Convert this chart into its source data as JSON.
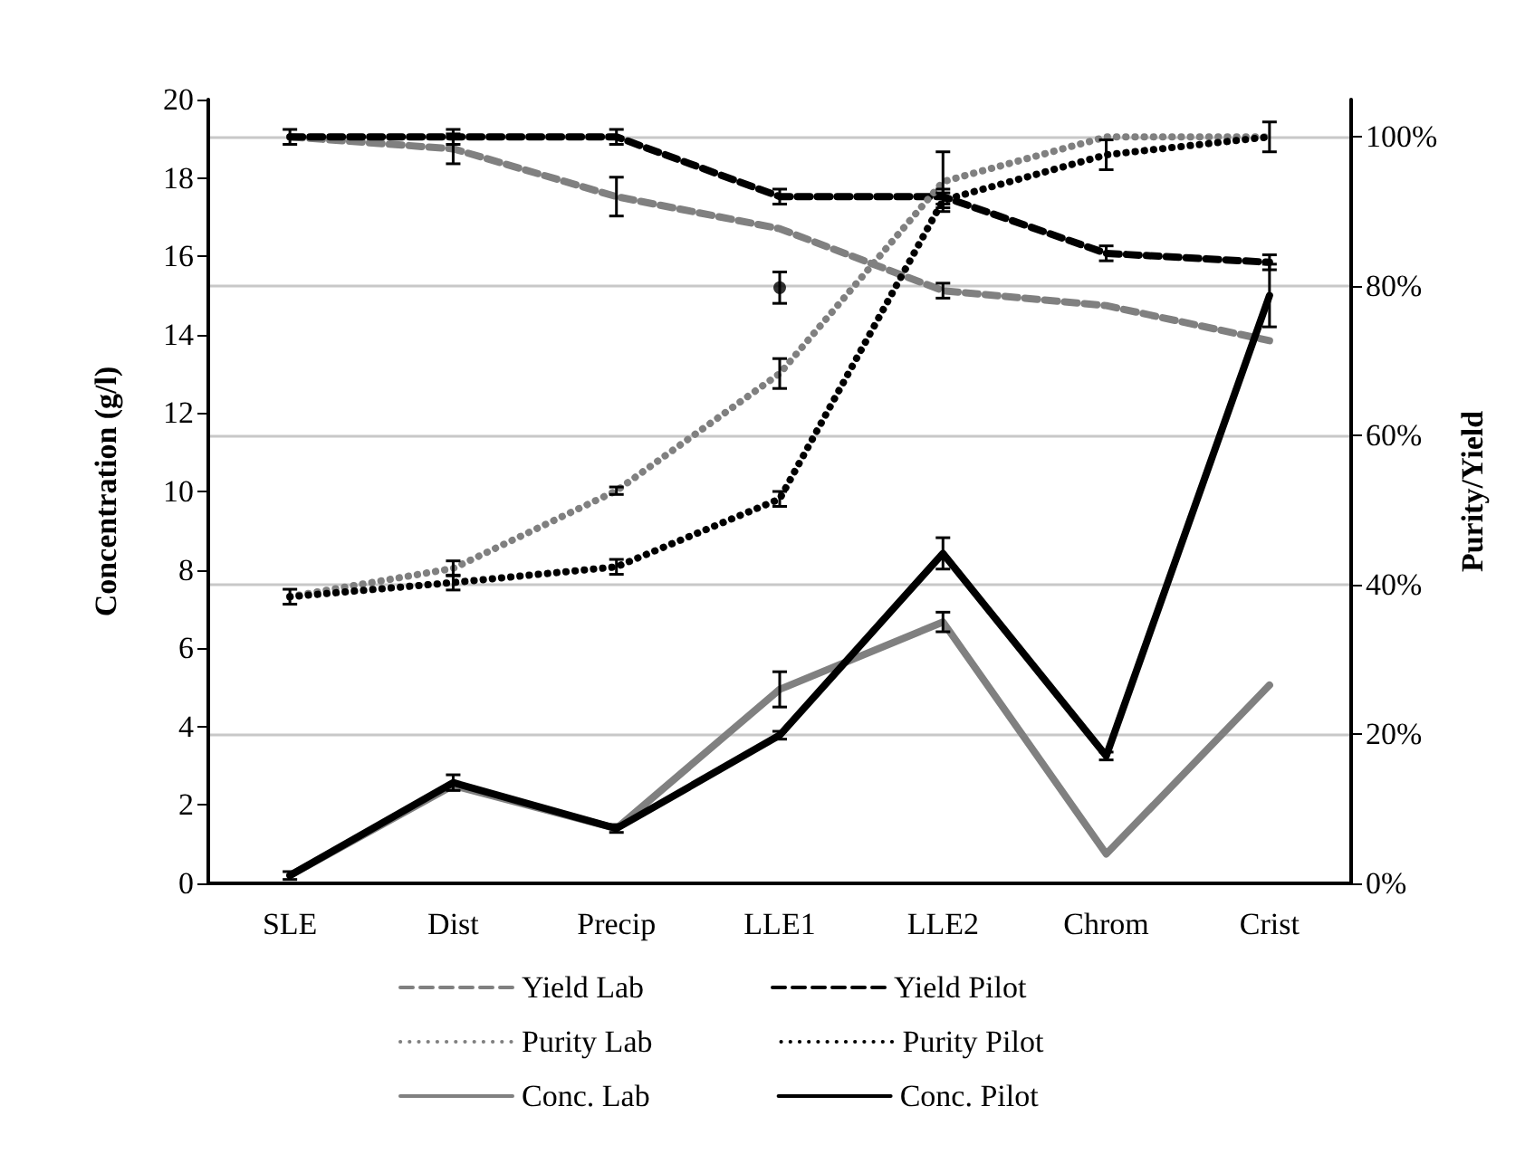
{
  "chart_data": {
    "type": "line",
    "xlabel": null,
    "ylabel": "Concentration (g/l)",
    "y2label": "Purity/Yield",
    "categories": [
      "SLE",
      "Dist",
      "Precip",
      "LLE1",
      "LLE2",
      "Chrom",
      "Crist"
    ],
    "ylim": [
      0,
      20
    ],
    "yticks": [
      0,
      2,
      4,
      6,
      8,
      10,
      12,
      14,
      16,
      18,
      20
    ],
    "y2lim": [
      0,
      105
    ],
    "y2ticks": [
      {
        "value": 0,
        "label": "0%"
      },
      {
        "value": 20,
        "label": "20%"
      },
      {
        "value": 40,
        "label": "40%"
      },
      {
        "value": 60,
        "label": "60%"
      },
      {
        "value": 80,
        "label": "80%"
      },
      {
        "value": 100,
        "label": "100%"
      }
    ],
    "grid": true,
    "legend": "bottom",
    "marker": "none",
    "series": [
      {
        "name": "Yield Lab",
        "color": "#808080",
        "axis": "y2",
        "line_style": "dashed",
        "values": [
          100,
          98.4,
          92,
          87.7,
          79.4,
          77.4,
          72.7
        ],
        "errors": [
          null,
          2,
          2.6,
          null,
          1,
          null,
          null
        ]
      },
      {
        "name": "Yield Pilot",
        "color": "#000000",
        "axis": "y2",
        "line_style": "dashed",
        "values": [
          100,
          100,
          100,
          92,
          92,
          84.4,
          83.2
        ],
        "errors": [
          1,
          1,
          1,
          1,
          1,
          1,
          1
        ]
      },
      {
        "name": "Purity Lab",
        "color": "#808080",
        "axis": "y2",
        "line_style": "dotted",
        "values": [
          38.4,
          42.2,
          52.6,
          68.3,
          94,
          100,
          100
        ],
        "errors": [
          null,
          1,
          0.5,
          2,
          4,
          null,
          null
        ]
      },
      {
        "name": "Purity Pilot",
        "color": "#000000",
        "axis": "y2",
        "line_style": "dotted",
        "values": [
          38.4,
          40.3,
          42.4,
          51.5,
          91.5,
          97.6,
          100
        ],
        "errors": [
          1,
          1,
          1,
          1,
          1,
          2,
          2
        ]
      },
      {
        "name": "Conc. Lab",
        "color": "#808080",
        "line_style": "solid",
        "values": [
          0.2,
          2.5,
          1.4,
          4.95,
          6.67,
          0.75,
          5.06
        ],
        "errors": [
          null,
          null,
          null,
          0.45,
          0.25,
          null,
          null
        ]
      },
      {
        "name": "Conc. Pilot",
        "color": "#000000",
        "line_style": "solid",
        "values": [
          0.2,
          2.57,
          1.4,
          3.78,
          8.42,
          3.25,
          15
        ],
        "errors": [
          0.1,
          0.2,
          0.1,
          0.1,
          0.4,
          0.1,
          0.8
        ]
      },
      {
        "type": "scatter",
        "marker": "circle",
        "color": "#000000",
        "x": [
          "LLE1"
        ],
        "values": [
          15.2
        ],
        "errors": [
          0.4
        ]
      }
    ]
  }
}
